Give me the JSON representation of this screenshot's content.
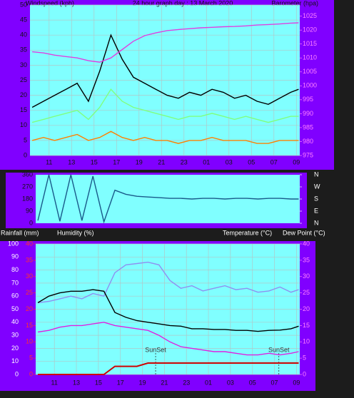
{
  "chart_data": [
    {
      "type": "line",
      "title": "24 hour graph day : 13 March 2020",
      "ylabel": "Windspeed (kph)",
      "y2label": "Barometer (hpa)",
      "grid": true,
      "x": [
        9.5,
        10.5,
        11.5,
        12.5,
        13.5,
        14.5,
        15.5,
        16.5,
        17.5,
        18.5,
        19.5,
        20.5,
        21.5,
        22.5,
        23.5,
        24.5,
        25.5,
        26.5,
        27.5,
        28.5,
        29.5,
        30.5,
        31.5,
        32.5,
        33.2
      ],
      "xlim": [
        9.3,
        33.3
      ],
      "xticks": [
        11,
        13,
        15,
        17,
        19,
        21,
        23,
        {
          "value": 25,
          "label": "01"
        },
        {
          "value": 27,
          "label": "03"
        },
        {
          "value": 29,
          "label": "05"
        },
        {
          "value": 31,
          "label": "07"
        },
        {
          "value": 33,
          "label": "09"
        }
      ],
      "ylim": [
        0,
        50
      ],
      "yticks": [
        0,
        5,
        10,
        15,
        20,
        25,
        30,
        35,
        40,
        45,
        50
      ],
      "y2lim": [
        975,
        1029
      ],
      "y2ticks": [
        975,
        980,
        985,
        990,
        995,
        1000,
        1005,
        1010,
        1015,
        1020,
        1025
      ],
      "series": [
        {
          "color": "#000000",
          "values": [
            16,
            18,
            20,
            22,
            24,
            18,
            28,
            40,
            32,
            26,
            24,
            22,
            20,
            19,
            21,
            20,
            22,
            21,
            19,
            20,
            18,
            17,
            19,
            21,
            22
          ]
        },
        {
          "color": "#80ff80",
          "values": [
            11,
            12,
            13,
            14,
            15,
            12,
            16,
            22,
            18,
            16,
            15,
            14,
            13,
            12,
            13,
            13,
            14,
            13,
            12,
            13,
            12,
            11,
            12,
            13,
            13
          ]
        },
        {
          "color": "#ff8000",
          "values": [
            5,
            6,
            5,
            6,
            7,
            5,
            6,
            8,
            6,
            5,
            6,
            5,
            5,
            4,
            5,
            5,
            6,
            5,
            5,
            5,
            4,
            4,
            5,
            5,
            5
          ]
        },
        {
          "color": "#e040e0",
          "axis": "y2",
          "values": [
            1012.2,
            1011.8,
            1011,
            1010.5,
            1010,
            1009,
            1008.5,
            1010,
            1013,
            1016,
            1018,
            1019,
            1019.8,
            1020.2,
            1020.5,
            1020.8,
            1021,
            1021.2,
            1021.3,
            1021.5,
            1021.8,
            1022,
            1022.2,
            1022.5,
            1022.6
          ]
        }
      ]
    },
    {
      "type": "line",
      "grid": false,
      "x": [
        9.5,
        10.5,
        11.5,
        12.5,
        13.5,
        14.5,
        15.5,
        16.5,
        17.5,
        18.5,
        19.5,
        20.5,
        21.5,
        22.5,
        23.5,
        24.5,
        25.5,
        26.5,
        27.5,
        28.5,
        29.5,
        30.5,
        31.5,
        32.5,
        33.2
      ],
      "xlim": [
        9.3,
        33.3
      ],
      "ylim": [
        0,
        360
      ],
      "yticks": [
        0,
        90,
        180,
        270,
        360
      ],
      "y2lim": [
        0,
        360
      ],
      "y2ticks": [
        {
          "value": 0,
          "label": "N"
        },
        {
          "value": 90,
          "label": "E"
        },
        {
          "value": 180,
          "label": "S"
        },
        {
          "value": 270,
          "label": "W"
        },
        {
          "value": 360,
          "label": "N"
        }
      ],
      "series": [
        {
          "color": "#1a5a8a",
          "values": [
            20,
            360,
            15,
            360,
            20,
            350,
            10,
            245,
            215,
            200,
            195,
            190,
            185,
            185,
            180,
            185,
            185,
            180,
            185,
            185,
            180,
            185,
            185,
            180,
            180
          ]
        }
      ]
    },
    {
      "type": "line",
      "grid": true,
      "x": [
        9.5,
        10.5,
        11.5,
        12.5,
        13.5,
        14.5,
        15.5,
        16.5,
        17.5,
        18.5,
        19.5,
        20.5,
        21.5,
        22.5,
        23.5,
        24.5,
        25.5,
        26.5,
        27.5,
        28.5,
        29.5,
        30.5,
        31.5,
        32.5,
        33.2
      ],
      "xlim": [
        9.3,
        33.3
      ],
      "xticks": [
        11,
        13,
        15,
        17,
        19,
        21,
        23,
        {
          "value": 25,
          "label": "01"
        },
        {
          "value": 27,
          "label": "03"
        },
        {
          "value": 29,
          "label": "05"
        },
        {
          "value": 31,
          "label": "07"
        },
        {
          "value": 33,
          "label": "09"
        }
      ],
      "ylim": [
        0,
        100
      ],
      "yticks": [
        0,
        10,
        20,
        30,
        40,
        50,
        60,
        70,
        80,
        90,
        100
      ],
      "y2lim": [
        0,
        40
      ],
      "y2ticks": [
        0,
        5,
        10,
        15,
        20,
        25,
        30,
        35,
        40
      ],
      "y3lim": [
        0,
        40
      ],
      "y3ticks": [
        0,
        5,
        10,
        15,
        20,
        25,
        30,
        35,
        40
      ],
      "annotations": [
        {
          "x": 20.2,
          "text": "SunSet"
        },
        {
          "x": 31.4,
          "text": "SunSet"
        }
      ],
      "series": [
        {
          "name": "Rainfall (mm)",
          "color": "#d00000",
          "axis": "y3",
          "values": [
            0,
            0,
            0,
            0,
            0,
            0,
            0,
            2.5,
            2.5,
            2.5,
            3.5,
            3.5,
            3.5,
            3.5,
            3.5,
            3.5,
            3.5,
            3.5,
            3.5,
            3.5,
            3.5,
            3.5,
            3.5,
            3.5,
            3.5
          ]
        },
        {
          "name": "Humidity (%)",
          "color": "#9090f0",
          "values": [
            55,
            56,
            58,
            60,
            58,
            62,
            60,
            78,
            84,
            85,
            86,
            84,
            72,
            66,
            68,
            64,
            66,
            68,
            65,
            66,
            63,
            64,
            67,
            63,
            65
          ]
        },
        {
          "name": "Temperature (°C)",
          "color": "#000000",
          "axis": "y2",
          "values": [
            22,
            24,
            25,
            25.5,
            25.5,
            26,
            25.5,
            19,
            17.5,
            16.5,
            16,
            15.5,
            15,
            14.8,
            14,
            14,
            13.8,
            13.8,
            13.5,
            13.5,
            13.2,
            13.5,
            13.6,
            14,
            14.8
          ]
        },
        {
          "name": "Dew Point (°C)",
          "color": "#e020e0",
          "axis": "y2",
          "values": [
            13,
            13.5,
            14.5,
            15,
            15,
            15.5,
            16,
            15,
            14.5,
            14,
            13.5,
            12,
            10,
            8.5,
            8,
            7.5,
            7,
            7,
            6.5,
            6,
            6,
            6.5,
            6,
            6.5,
            7
          ]
        }
      ]
    }
  ]
}
